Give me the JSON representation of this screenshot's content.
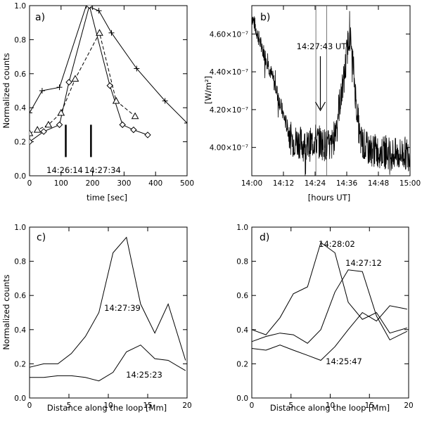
{
  "chart_data": [
    {
      "panel": "a)",
      "type": "line",
      "xlabel": "time [sec]",
      "ylabel": "Normalized counts",
      "xlim": [
        0,
        500
      ],
      "ylim": [
        0,
        1.0
      ],
      "xticks": [
        0,
        100,
        200,
        300,
        400,
        500
      ],
      "yticks": [
        "0.0",
        "0.2",
        "0.4",
        "0.6",
        "0.8",
        "1.0"
      ],
      "yticks_values": [
        0,
        0.2,
        0.4,
        0.6,
        0.8,
        1.0
      ],
      "series": [
        {
          "name": "plus",
          "dash": false,
          "marker": "plus",
          "x": [
            0,
            40,
            95,
            180,
            220,
            260,
            340,
            430,
            500
          ],
          "y": [
            0.37,
            0.5,
            0.52,
            1.0,
            0.97,
            0.84,
            0.63,
            0.44,
            0.31
          ]
        },
        {
          "name": "diamond",
          "dash": false,
          "marker": "diamond",
          "x": [
            0,
            45,
            95,
            125,
            190,
            255,
            295,
            330,
            375
          ],
          "y": [
            0.2,
            0.26,
            0.3,
            0.55,
            1.0,
            0.53,
            0.3,
            0.27,
            0.24
          ]
        },
        {
          "name": "triangle",
          "dash": true,
          "marker": "triangle",
          "x": [
            0,
            25,
            60,
            100,
            145,
            222,
            275,
            335
          ],
          "y": [
            0.25,
            0.27,
            0.3,
            0.37,
            0.57,
            0.84,
            0.44,
            0.35
          ]
        }
      ],
      "markers": [
        {
          "x": 115,
          "y0": 0.11,
          "y1": 0.3,
          "label": "14:26:14"
        },
        {
          "x": 195,
          "y0": 0.11,
          "y1": 0.3,
          "label": "14:27:34"
        }
      ]
    },
    {
      "panel": "b)",
      "type": "line",
      "xlabel": "[hours UT]",
      "ylabel": "[W/m²]",
      "xlim_minutes": [
        0,
        60
      ],
      "xticks": [
        "14:00",
        "14:12",
        "14:24",
        "14:36",
        "14:48",
        "15:00"
      ],
      "xticks_values": [
        0,
        12,
        24,
        36,
        48,
        60
      ],
      "ylim": [
        3.85e-07,
        4.75e-07
      ],
      "yticks": [
        "4.00×10⁻⁷",
        "4.20×10⁻⁷",
        "4.40×10⁻⁷",
        "4.60×10⁻⁷"
      ],
      "yticks_values": [
        4e-07,
        4.2e-07,
        4.4e-07,
        4.6e-07
      ],
      "vlines_minutes": [
        24.3,
        28.4
      ],
      "annotation": "14:27:43 UT",
      "arrow_minute": 26.0,
      "series_control_points": {
        "t": [
          0,
          3,
          6,
          9,
          12,
          15,
          18,
          21,
          24,
          27,
          30,
          31,
          33,
          35,
          36,
          37,
          38,
          39.5,
          41,
          44,
          48,
          52,
          55,
          58,
          60
        ],
        "v": [
          4.7e-07,
          4.56e-07,
          4.45e-07,
          4.32e-07,
          4.17e-07,
          4.04e-07,
          4.03e-07,
          4e-07,
          4.04e-07,
          4.02e-07,
          4e-07,
          4.04e-07,
          4.21e-07,
          4.36e-07,
          4.5e-07,
          4.61e-07,
          4.5e-07,
          4.25e-07,
          4.04e-07,
          3.99e-07,
          3.98e-07,
          3.97e-07,
          3.96e-07,
          3.97e-07,
          3.96e-07
        ]
      }
    },
    {
      "panel": "c)",
      "type": "line",
      "xlabel": "Distance along the loop [Mm]",
      "ylabel": "Normalized counts",
      "xlim": [
        0,
        20
      ],
      "ylim": [
        0,
        1.0
      ],
      "xticks": [
        0,
        5,
        10,
        15,
        20
      ],
      "yticks": [
        "0.0",
        "0.2",
        "0.4",
        "0.6",
        "0.8",
        "1.0"
      ],
      "yticks_values": [
        0,
        0.2,
        0.4,
        0.6,
        0.8,
        1.0
      ],
      "series": [
        {
          "name": "14:27:39",
          "x": [
            0,
            1.8,
            3.6,
            5.3,
            7.1,
            8.8,
            10.6,
            12.3,
            14.1,
            15.9,
            17.6,
            19.8
          ],
          "y": [
            0.18,
            0.2,
            0.2,
            0.26,
            0.36,
            0.5,
            0.85,
            0.94,
            0.55,
            0.38,
            0.55,
            0.22
          ]
        },
        {
          "name": "14:25:23",
          "x": [
            0,
            1.8,
            3.6,
            5.3,
            7.1,
            8.8,
            10.6,
            12.3,
            14.1,
            15.9,
            17.6,
            19.8
          ],
          "y": [
            0.12,
            0.12,
            0.13,
            0.13,
            0.12,
            0.1,
            0.15,
            0.27,
            0.31,
            0.23,
            0.22,
            0.16
          ]
        }
      ],
      "labels": [
        "14:27:39",
        "14:25:23"
      ]
    },
    {
      "panel": "d)",
      "type": "line",
      "xlabel": "Distance along the loop [Mm]",
      "xlim": [
        0,
        20
      ],
      "ylim": [
        0,
        1.0
      ],
      "xticks": [
        0,
        5,
        10,
        15,
        20
      ],
      "yticks": [
        "0.0",
        "0.2",
        "0.4",
        "0.6",
        "0.8",
        "1.0"
      ],
      "yticks_values": [
        0,
        0.2,
        0.4,
        0.6,
        0.8,
        1.0
      ],
      "series": [
        {
          "name": "14:28:02",
          "x": [
            0,
            1.8,
            3.6,
            5.3,
            7.1,
            8.8,
            10.6,
            12.3,
            14.1,
            15.9,
            17.6,
            19.8
          ],
          "y": [
            0.4,
            0.37,
            0.47,
            0.61,
            0.65,
            0.91,
            0.85,
            0.56,
            0.46,
            0.5,
            0.38,
            0.41
          ]
        },
        {
          "name": "14:27:12",
          "x": [
            0,
            1.8,
            3.6,
            5.3,
            7.1,
            8.8,
            10.6,
            12.3,
            14.1,
            15.9,
            17.6,
            19.8
          ],
          "y": [
            0.33,
            0.36,
            0.38,
            0.37,
            0.32,
            0.4,
            0.62,
            0.75,
            0.74,
            0.48,
            0.34,
            0.39
          ]
        },
        {
          "name": "14:25:47",
          "x": [
            0,
            1.8,
            3.6,
            5.3,
            7.1,
            8.8,
            10.6,
            12.3,
            14.1,
            15.9,
            17.6,
            19.8
          ],
          "y": [
            0.29,
            0.28,
            0.31,
            0.28,
            0.25,
            0.22,
            0.3,
            0.4,
            0.5,
            0.45,
            0.54,
            0.52
          ]
        }
      ],
      "labels": [
        "14:28:02",
        "14:27:12",
        "14:25:47"
      ]
    }
  ]
}
